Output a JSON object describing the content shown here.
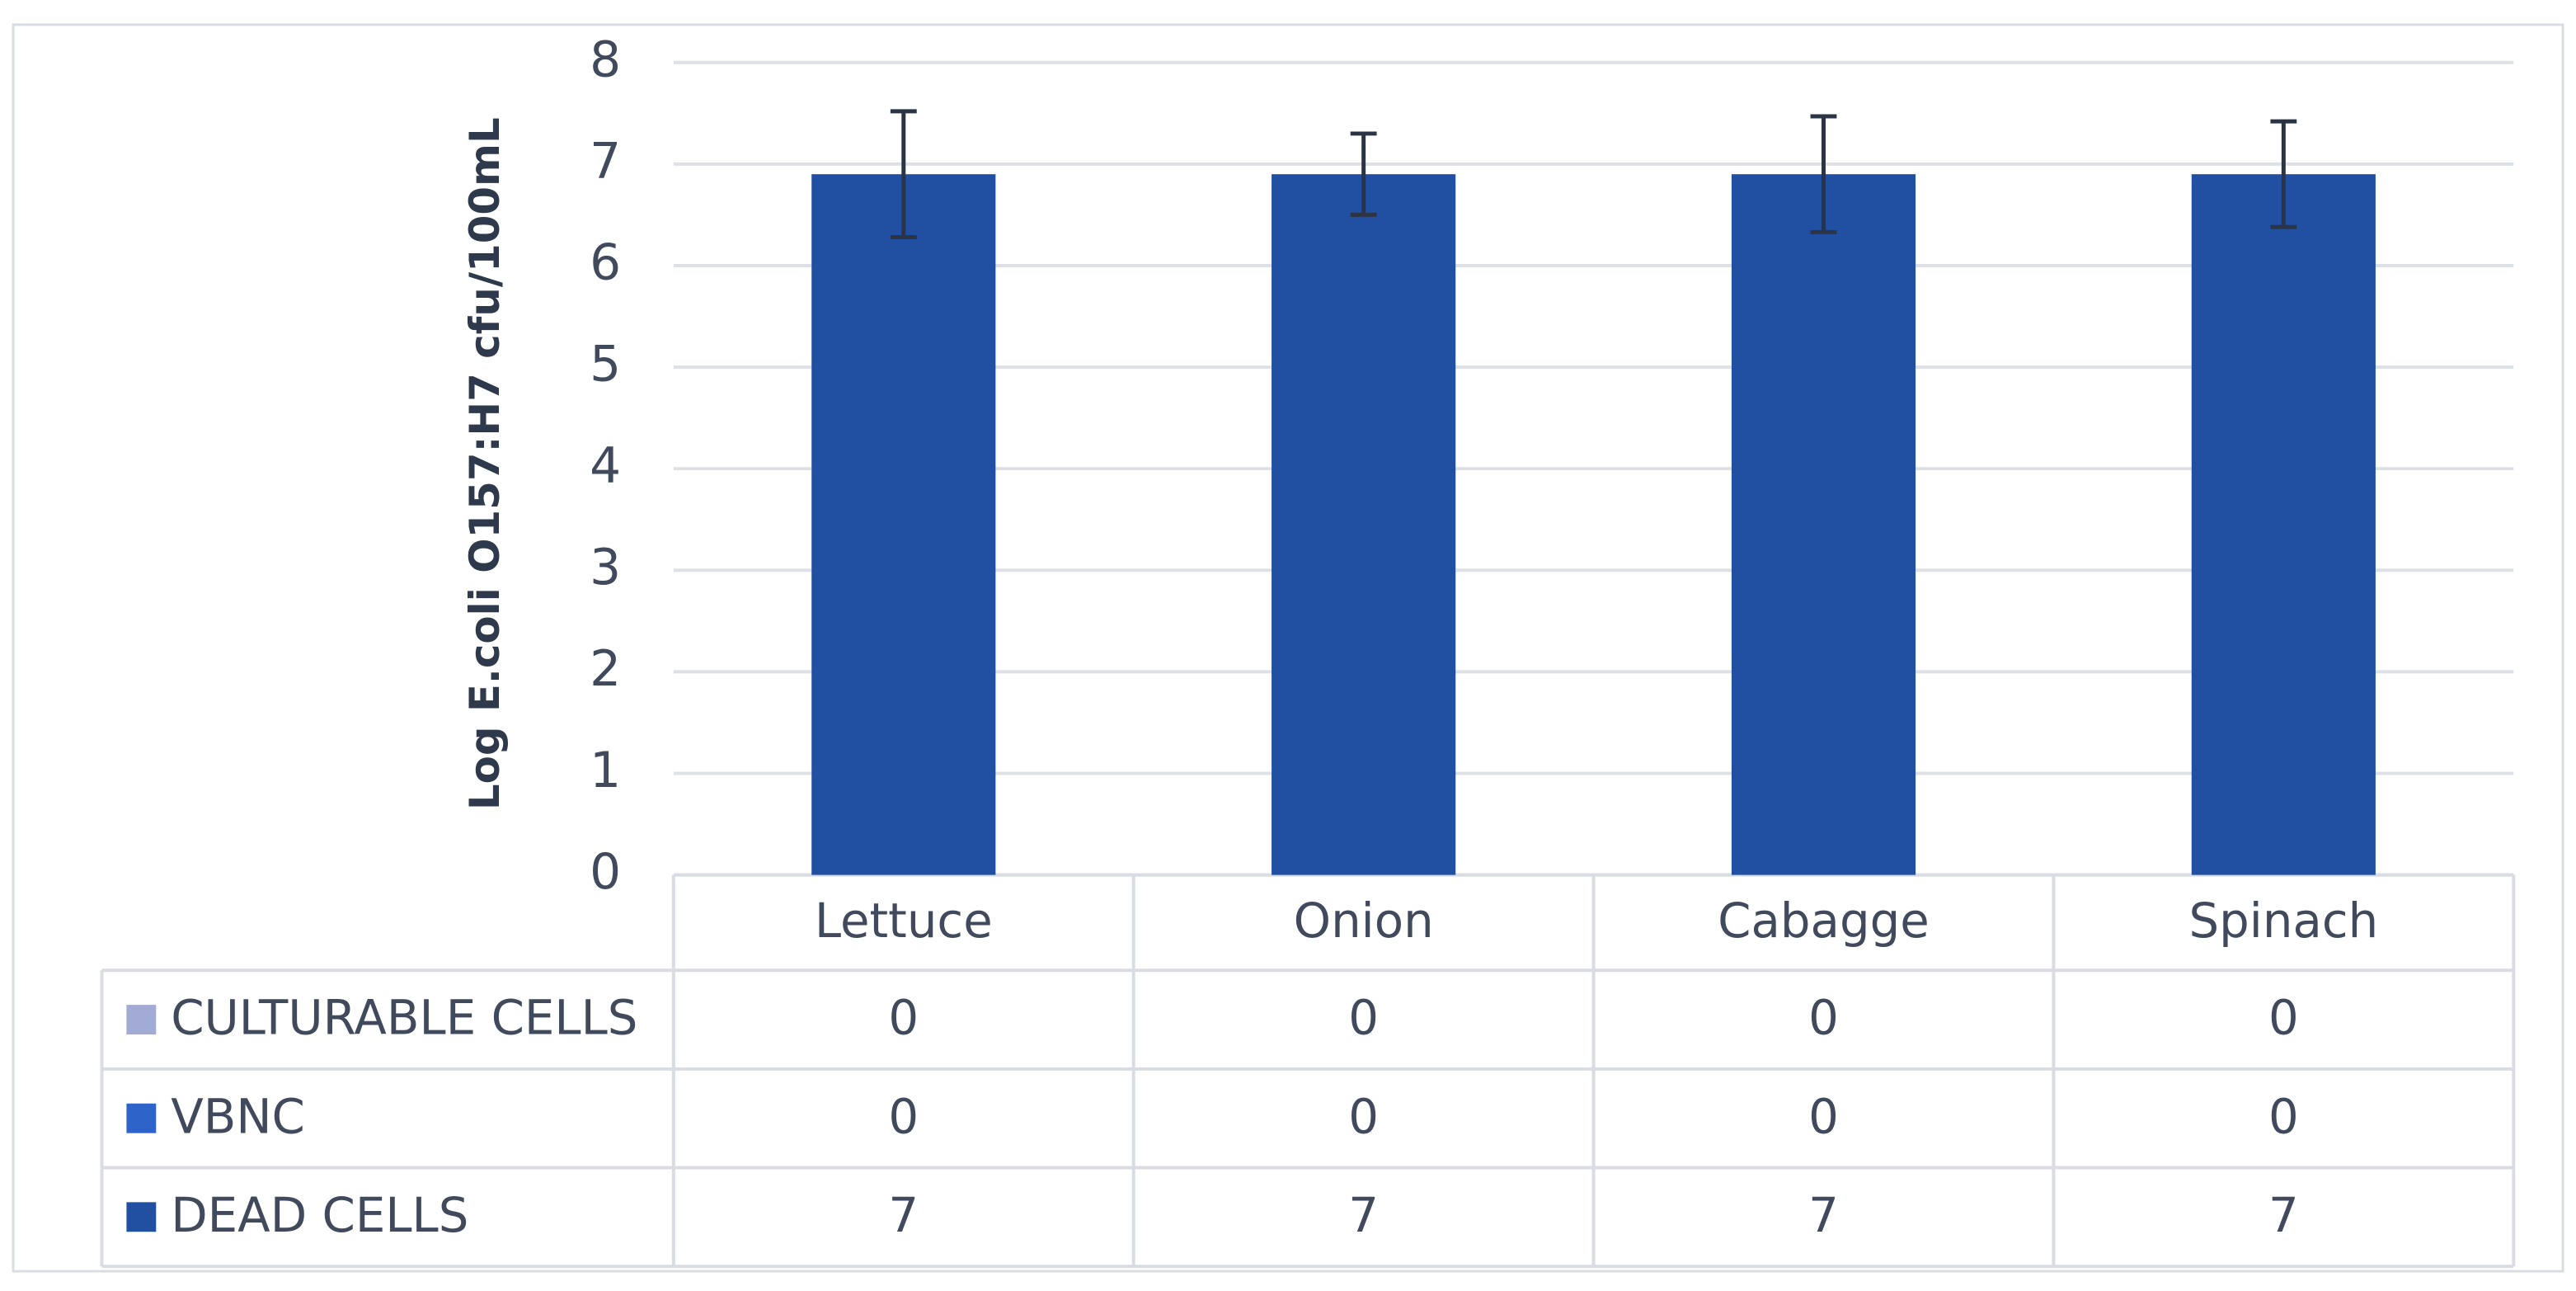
{
  "chart_data": {
    "type": "bar",
    "stacked": true,
    "y_label": "Log E.coli O157:H7 cfu/100mL",
    "categories": [
      "Lettuce",
      "Onion",
      "Cabagge",
      "Spinach"
    ],
    "series": [
      {
        "name": "CULTURABLE CELLS",
        "color": "#a2abd4",
        "values": [
          0,
          0,
          0,
          0
        ]
      },
      {
        "name": "VBNC",
        "color": "#2e63c9",
        "values": [
          0,
          0,
          0,
          0
        ]
      },
      {
        "name": "DEAD CELLS",
        "color": "#2150a3",
        "values": [
          6.9,
          6.9,
          6.9,
          6.9
        ],
        "value_labels": [
          "7",
          "7",
          "7",
          "7"
        ],
        "errors": [
          0.62,
          0.4,
          0.57,
          0.52
        ]
      }
    ],
    "ylim": [
      0,
      8
    ],
    "yticks": [
      0,
      1,
      2,
      3,
      4,
      5,
      6,
      7,
      8
    ],
    "grid": true
  }
}
